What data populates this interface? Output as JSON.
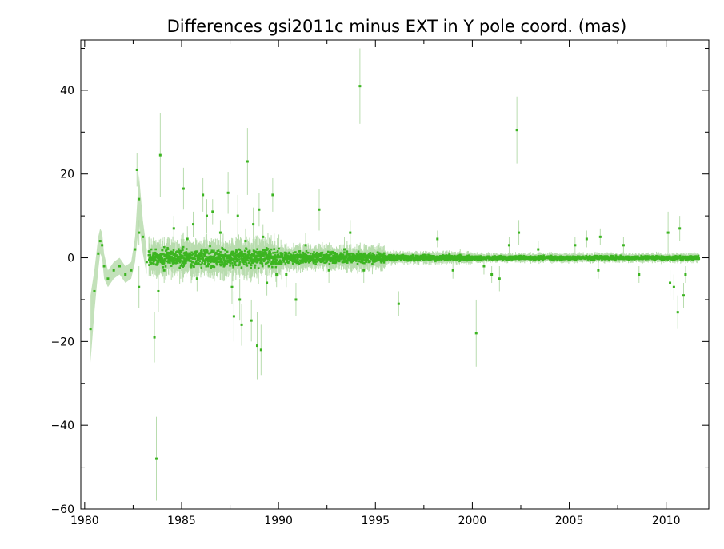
{
  "chart_data": {
    "type": "scatter",
    "title": "Differences gsi2011c minus EXT in Y pole coord. (mas)",
    "xlabel": "",
    "ylabel": "",
    "xlim": [
      1979.8,
      2012.2
    ],
    "ylim": [
      -60,
      52
    ],
    "x_ticks": [
      1980,
      1985,
      1990,
      1995,
      2000,
      2005,
      2010
    ],
    "x_tick_labels": [
      "1980",
      "1985",
      "1990",
      "1995",
      "2000",
      "2005",
      "2010"
    ],
    "y_ticks": [
      -60,
      -40,
      -20,
      0,
      20,
      40
    ],
    "y_tick_labels": [
      "−60",
      "−40",
      "−20",
      "0",
      "20",
      "40"
    ],
    "grid": false,
    "marker_color": "#3cb521",
    "errorbar_color": "#b8dcae",
    "early_series": {
      "x": [
        1980.3,
        1980.5,
        1980.7,
        1980.8,
        1980.9,
        1981.0,
        1981.2,
        1981.5,
        1981.8,
        1982.1,
        1982.4,
        1982.6,
        1982.8,
        1983.0,
        1983.2
      ],
      "y": [
        -17,
        -8,
        1,
        4,
        3,
        -2,
        -5,
        -3,
        -2,
        -4,
        -3,
        2,
        14,
        5,
        -1
      ],
      "err": [
        8,
        5,
        4,
        3,
        3,
        3,
        2,
        2,
        2,
        2,
        2,
        3,
        6,
        4,
        3
      ]
    },
    "outliers": [
      {
        "x": 1982.7,
        "y": 21,
        "err": 4
      },
      {
        "x": 1982.8,
        "y": 6,
        "err": 3
      },
      {
        "x": 1982.8,
        "y": -7,
        "err": 5
      },
      {
        "x": 1983.6,
        "y": -19,
        "err": 6
      },
      {
        "x": 1983.7,
        "y": -48,
        "err": 10
      },
      {
        "x": 1983.9,
        "y": 24.5,
        "err": 10
      },
      {
        "x": 1983.8,
        "y": -8,
        "err": 5
      },
      {
        "x": 1984.1,
        "y": -3,
        "err": 3
      },
      {
        "x": 1984.6,
        "y": 7,
        "err": 3
      },
      {
        "x": 1985.1,
        "y": 16.5,
        "err": 5
      },
      {
        "x": 1985.3,
        "y": 4.5,
        "err": 3
      },
      {
        "x": 1985.6,
        "y": 8,
        "err": 3
      },
      {
        "x": 1985.8,
        "y": -5,
        "err": 3
      },
      {
        "x": 1986.1,
        "y": 15,
        "err": 4
      },
      {
        "x": 1986.3,
        "y": 10,
        "err": 4
      },
      {
        "x": 1986.6,
        "y": 11,
        "err": 3
      },
      {
        "x": 1987.0,
        "y": 6,
        "err": 3
      },
      {
        "x": 1987.4,
        "y": 15.5,
        "err": 5
      },
      {
        "x": 1987.6,
        "y": -7,
        "err": 4
      },
      {
        "x": 1987.7,
        "y": -14,
        "err": 6
      },
      {
        "x": 1987.9,
        "y": 10,
        "err": 5
      },
      {
        "x": 1988.0,
        "y": -10,
        "err": 5
      },
      {
        "x": 1988.1,
        "y": -16,
        "err": 5
      },
      {
        "x": 1988.3,
        "y": 4,
        "err": 3
      },
      {
        "x": 1988.4,
        "y": 23,
        "err": 8
      },
      {
        "x": 1988.6,
        "y": -15,
        "err": 5
      },
      {
        "x": 1988.7,
        "y": 8,
        "err": 4
      },
      {
        "x": 1988.9,
        "y": -21,
        "err": 8
      },
      {
        "x": 1989.1,
        "y": -22,
        "err": 6
      },
      {
        "x": 1989.0,
        "y": 11.5,
        "err": 4
      },
      {
        "x": 1989.2,
        "y": 5,
        "err": 3
      },
      {
        "x": 1989.4,
        "y": -6,
        "err": 3
      },
      {
        "x": 1989.7,
        "y": 15,
        "err": 4
      },
      {
        "x": 1989.9,
        "y": -4,
        "err": 3
      },
      {
        "x": 1990.4,
        "y": -4,
        "err": 3
      },
      {
        "x": 1990.9,
        "y": -10,
        "err": 4
      },
      {
        "x": 1991.4,
        "y": 3,
        "err": 3
      },
      {
        "x": 1992.1,
        "y": 11.5,
        "err": 5
      },
      {
        "x": 1992.6,
        "y": -3,
        "err": 3
      },
      {
        "x": 1993.4,
        "y": 2,
        "err": 3
      },
      {
        "x": 1993.7,
        "y": 6,
        "err": 3
      },
      {
        "x": 1994.2,
        "y": 41,
        "err": 9
      },
      {
        "x": 1994.4,
        "y": -3,
        "err": 3
      },
      {
        "x": 1996.2,
        "y": -11,
        "err": 3
      },
      {
        "x": 1998.2,
        "y": 4.5,
        "err": 2
      },
      {
        "x": 1999.0,
        "y": -3,
        "err": 2
      },
      {
        "x": 2000.2,
        "y": -18,
        "err": 8
      },
      {
        "x": 2000.6,
        "y": -2,
        "err": 2
      },
      {
        "x": 2001.0,
        "y": -4,
        "err": 2
      },
      {
        "x": 2001.4,
        "y": -5,
        "err": 3
      },
      {
        "x": 2001.9,
        "y": 3,
        "err": 2
      },
      {
        "x": 2002.3,
        "y": 30.5,
        "err": 8
      },
      {
        "x": 2002.4,
        "y": 6,
        "err": 3
      },
      {
        "x": 2003.4,
        "y": 2,
        "err": 2
      },
      {
        "x": 2005.3,
        "y": 3,
        "err": 2
      },
      {
        "x": 2005.9,
        "y": 4.5,
        "err": 2
      },
      {
        "x": 2006.6,
        "y": 5,
        "err": 2
      },
      {
        "x": 2006.5,
        "y": -3,
        "err": 2
      },
      {
        "x": 2007.8,
        "y": 3,
        "err": 2
      },
      {
        "x": 2008.6,
        "y": -4,
        "err": 2
      },
      {
        "x": 2010.1,
        "y": 6,
        "err": 5
      },
      {
        "x": 2010.2,
        "y": -6,
        "err": 3
      },
      {
        "x": 2010.4,
        "y": -7,
        "err": 3
      },
      {
        "x": 2010.6,
        "y": -13,
        "err": 4
      },
      {
        "x": 2010.7,
        "y": 7,
        "err": 3
      },
      {
        "x": 2010.9,
        "y": -9,
        "err": 3
      },
      {
        "x": 2011.0,
        "y": -4,
        "err": 2
      }
    ],
    "dense_band": {
      "x_start": 1983.3,
      "x_end": 2011.7,
      "segments": [
        {
          "from": 1983.3,
          "to": 1990.2,
          "spread": 3.0,
          "err": 3.0
        },
        {
          "from": 1990.2,
          "to": 1995.5,
          "spread": 1.8,
          "err": 2.0
        },
        {
          "from": 1995.5,
          "to": 2000.0,
          "spread": 0.9,
          "err": 1.0
        },
        {
          "from": 2000.0,
          "to": 2011.7,
          "spread": 0.6,
          "err": 0.8
        }
      ]
    }
  }
}
